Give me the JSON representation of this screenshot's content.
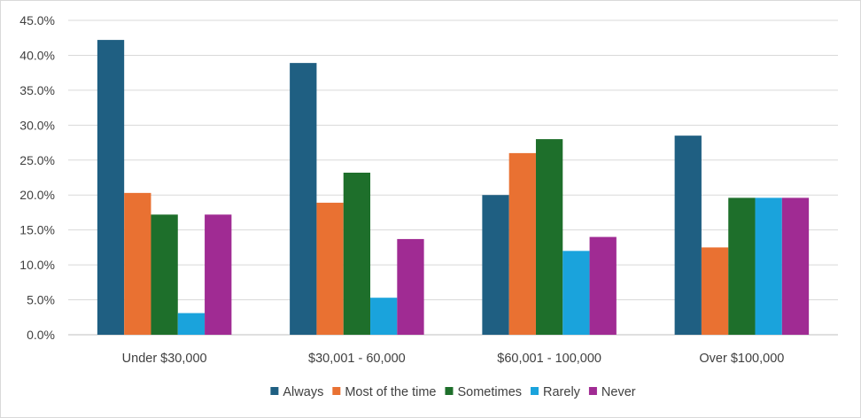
{
  "chart_data": {
    "type": "bar",
    "title": "",
    "xlabel": "",
    "ylabel": "",
    "ylim": [
      0,
      45
    ],
    "yticks": [
      0,
      5,
      10,
      15,
      20,
      25,
      30,
      35,
      40,
      45
    ],
    "ytick_labels": [
      "0.0%",
      "5.0%",
      "10.0%",
      "15.0%",
      "20.0%",
      "25.0%",
      "30.0%",
      "35.0%",
      "40.0%",
      "45.0%"
    ],
    "grid": true,
    "legend_position": "bottom",
    "categories": [
      "Under $30,000",
      "$30,001 - 60,000",
      "$60,001 - 100,000",
      "Over $100,000"
    ],
    "series": [
      {
        "name": "Always",
        "color": "#1f5f82",
        "values": [
          42.2,
          38.9,
          20.0,
          28.5
        ]
      },
      {
        "name": "Most of the time",
        "color": "#e97132",
        "values": [
          20.3,
          18.9,
          26.0,
          12.5
        ]
      },
      {
        "name": "Sometimes",
        "color": "#1e6f2b",
        "values": [
          17.2,
          23.2,
          28.0,
          19.6
        ]
      },
      {
        "name": "Rarely",
        "color": "#1aa3dc",
        "values": [
          3.1,
          5.3,
          12.0,
          19.6
        ]
      },
      {
        "name": "Never",
        "color": "#a02b93",
        "values": [
          17.2,
          13.7,
          14.0,
          19.6
        ]
      }
    ]
  }
}
